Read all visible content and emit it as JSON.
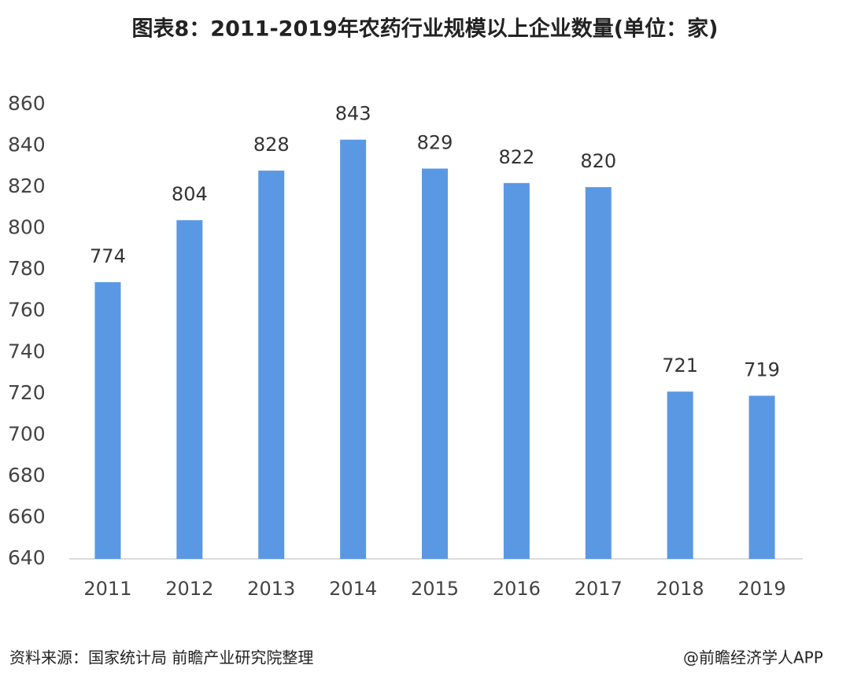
{
  "chart_data": {
    "type": "bar",
    "title": "图表8：2011-2019年农药行业规模以上企业数量(单位：家)",
    "categories": [
      "2011",
      "2012",
      "2013",
      "2014",
      "2015",
      "2016",
      "2017",
      "2018",
      "2019"
    ],
    "values": [
      774,
      804,
      828,
      843,
      829,
      822,
      820,
      721,
      719
    ],
    "color": "#5b98e4",
    "ylim": [
      640,
      860
    ],
    "yticks": [
      640,
      660,
      680,
      700,
      720,
      740,
      760,
      780,
      800,
      820,
      840,
      860
    ],
    "grid": false,
    "source": "资料来源：国家统计局 前瞻产业研究院整理",
    "credit": "@前瞻经济学人APP"
  }
}
